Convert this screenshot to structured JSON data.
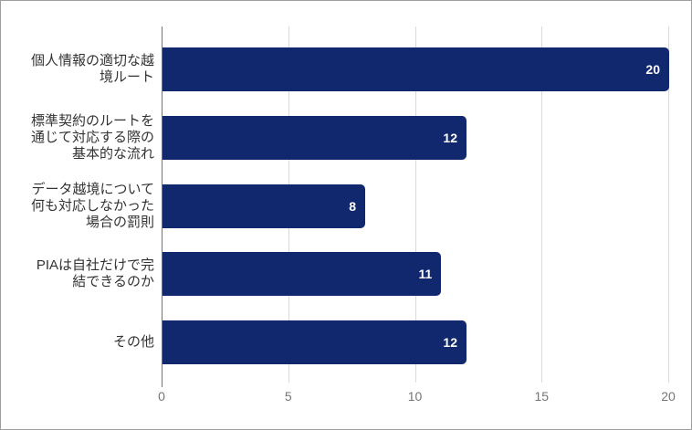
{
  "chart_data": {
    "type": "bar",
    "orientation": "horizontal",
    "title": "",
    "xlabel": "",
    "ylabel": "",
    "categories": [
      "個人情報の適切な越\n境ルート",
      "標準契約のルートを\n通じて対応する際の\n基本的な流れ",
      "データ越境について\n何も対応しなかった\n場合の罰則",
      "PIAは自社だけで完\n結できるのか",
      "その他"
    ],
    "values": [
      20,
      12,
      8,
      11,
      12
    ],
    "xticks": [
      "0",
      "5",
      "10",
      "15",
      "20"
    ],
    "xtick_values": [
      0,
      5,
      10,
      15,
      20
    ],
    "xlim": [
      0,
      20
    ],
    "grid": true,
    "legend_position": "none",
    "colors": {
      "bar": "#12286e",
      "value_label": "#ffffff",
      "gridline": "#d9d9d9",
      "axis_line": "#757575",
      "tick_label": "#757575",
      "category_label": "#333333",
      "chart_border": "#9e9e9e",
      "background": "#ffffff"
    }
  }
}
